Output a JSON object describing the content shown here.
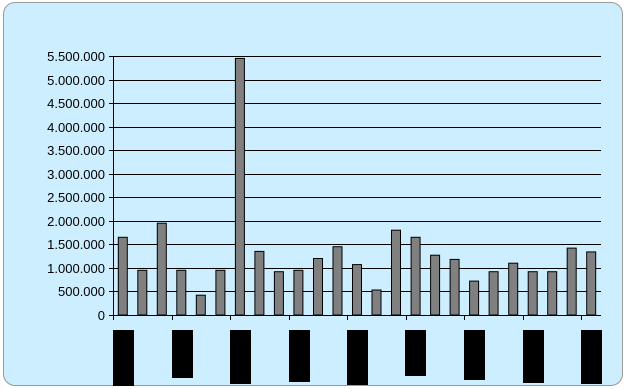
{
  "chart_data": {
    "type": "bar",
    "title": "",
    "xlabel": "",
    "ylabel": "",
    "ylim": [
      0,
      5500000
    ],
    "y_ticks": [
      {
        "value": 0,
        "label": "0"
      },
      {
        "value": 500000,
        "label": "500.000"
      },
      {
        "value": 1000000,
        "label": "1.000.000"
      },
      {
        "value": 1500000,
        "label": "1.500.000"
      },
      {
        "value": 2000000,
        "label": "2.000.000"
      },
      {
        "value": 2500000,
        "label": "2.500.000"
      },
      {
        "value": 3000000,
        "label": "3.000.000"
      },
      {
        "value": 3500000,
        "label": "3.500.000"
      },
      {
        "value": 4000000,
        "label": "4.000.000"
      },
      {
        "value": 4500000,
        "label": "4.500.000"
      },
      {
        "value": 5000000,
        "label": "5.000.000"
      },
      {
        "value": 5500000,
        "label": "5.500.000"
      }
    ],
    "grid": "horizontal",
    "legend": "none",
    "x_labels_redacted": true,
    "values": [
      1650000,
      950000,
      1950000,
      950000,
      420000,
      950000,
      5450000,
      1350000,
      920000,
      950000,
      1200000,
      1450000,
      1070000,
      530000,
      1800000,
      1650000,
      1270000,
      1180000,
      720000,
      920000,
      1100000,
      920000,
      920000,
      1420000,
      1340000
    ],
    "colors": {
      "background": "#cceeff",
      "bar_fill": "#808080",
      "bar_stroke": "#000000",
      "gridline": "#000000",
      "redaction": "#000000"
    }
  }
}
